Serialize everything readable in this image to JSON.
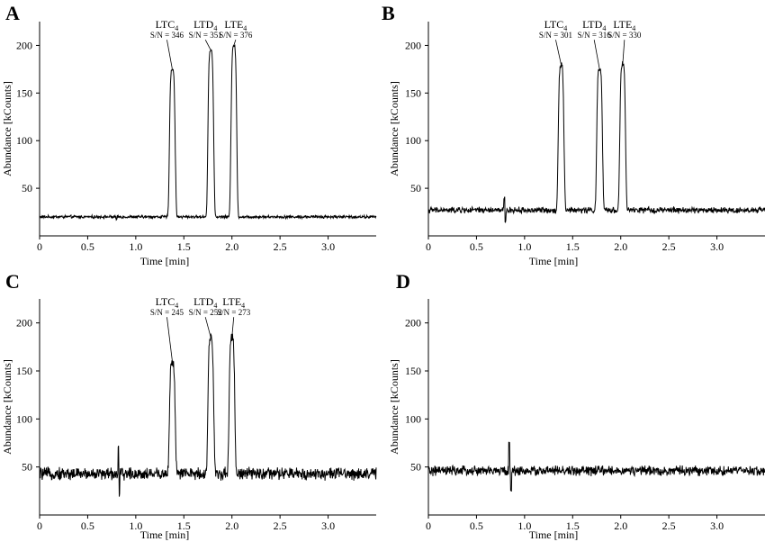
{
  "chart_data": [
    {
      "type": "line",
      "panel_label": "A",
      "xlabel": "Time [min]",
      "ylabel": "Abundance [kCounts]",
      "xlim": [
        0,
        3.5
      ],
      "ylim": [
        0,
        225
      ],
      "xticks": [
        "0",
        "0.5",
        "1.0",
        "1.5",
        "2.0",
        "2.5",
        "3.0"
      ],
      "yticks": [
        "50",
        "100",
        "150",
        "200"
      ],
      "baseline": 20,
      "noise": 1.2,
      "artifacts": [
        {
          "t": 0.8,
          "amp": -3
        }
      ],
      "peaks": [
        {
          "name": "LTC",
          "sub": "4",
          "sn": "S/N = 346",
          "t": 1.38,
          "height": 175
        },
        {
          "name": "LTD",
          "sub": "4",
          "sn": "S/N = 351",
          "t": 1.78,
          "height": 195
        },
        {
          "name": "LTE",
          "sub": "4",
          "sn": "S/N = 376",
          "t": 2.02,
          "height": 200
        }
      ]
    },
    {
      "type": "line",
      "panel_label": "B",
      "xlabel": "Time [min]",
      "ylabel": "Abundance [kCounts]",
      "xlim": [
        0,
        3.5
      ],
      "ylim": [
        0,
        225
      ],
      "xticks": [
        "0",
        "0.5",
        "1.0",
        "1.5",
        "2.0",
        "2.5",
        "3.0"
      ],
      "yticks": [
        "50",
        "100",
        "150",
        "200"
      ],
      "baseline": 27,
      "noise": 2.5,
      "artifacts": [
        {
          "t": 0.8,
          "amp": -13
        },
        {
          "t": 0.79,
          "amp": 12
        }
      ],
      "peaks": [
        {
          "name": "LTC",
          "sub": "4",
          "sn": "S/N = 301",
          "t": 1.38,
          "height": 180
        },
        {
          "name": "LTD",
          "sub": "4",
          "sn": "S/N = 316",
          "t": 1.78,
          "height": 175
        },
        {
          "name": "LTE",
          "sub": "4",
          "sn": "S/N = 330",
          "t": 2.02,
          "height": 180
        }
      ]
    },
    {
      "type": "line",
      "panel_label": "C",
      "xlabel": "Time [min]",
      "ylabel": "Abundance [kCounts]",
      "xlim": [
        0,
        3.5
      ],
      "ylim": [
        0,
        225
      ],
      "xticks": [
        "0",
        "0.5",
        "1.0",
        "1.5",
        "2.0",
        "2.5",
        "3.0"
      ],
      "yticks": [
        "50",
        "100",
        "150",
        "200"
      ],
      "baseline": 43,
      "noise": 5,
      "artifacts": [
        {
          "t": 0.82,
          "amp": 26
        },
        {
          "t": 0.83,
          "amp": -25
        }
      ],
      "peaks": [
        {
          "name": "LTC",
          "sub": "4",
          "sn": "S/N = 245",
          "t": 1.38,
          "height": 160
        },
        {
          "name": "LTD",
          "sub": "4",
          "sn": "S/N = 252",
          "t": 1.78,
          "height": 185
        },
        {
          "name": "LTE",
          "sub": "4",
          "sn": "S/N = 273",
          "t": 2.0,
          "height": 185
        }
      ]
    },
    {
      "type": "line",
      "panel_label": "D",
      "xlabel": "Time [min]",
      "ylabel": "Abundance [kCounts]",
      "xlim": [
        0,
        3.5
      ],
      "ylim": [
        0,
        225
      ],
      "xticks": [
        "0",
        "0.5",
        "1.0",
        "1.5",
        "2.0",
        "2.5",
        "3.0"
      ],
      "yticks": [
        "50",
        "100",
        "150",
        "200"
      ],
      "baseline": 46,
      "noise": 4,
      "artifacts": [
        {
          "t": 0.84,
          "amp": 30
        },
        {
          "t": 0.86,
          "amp": -20
        }
      ],
      "peaks": []
    }
  ]
}
